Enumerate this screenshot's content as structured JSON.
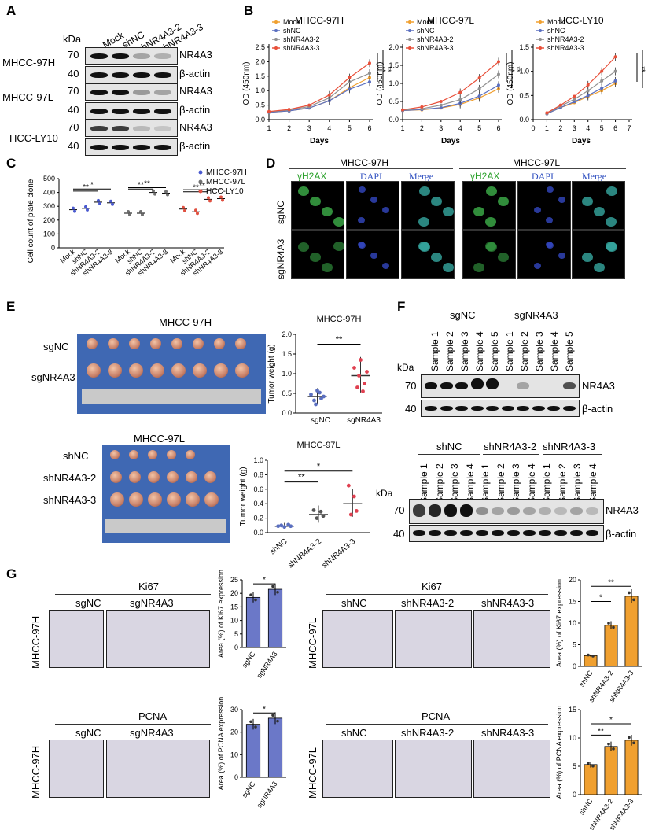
{
  "panels": {
    "A": "A",
    "B": "B",
    "C": "C",
    "D": "D",
    "E": "E",
    "F": "F",
    "G": "G"
  },
  "panelA": {
    "kda": "kDa",
    "lanes": [
      "Mock",
      "shNC",
      "shNR4A3-2",
      "shNR4A3-3"
    ],
    "cell_lines": [
      "MHCC-97H",
      "MHCC-97L",
      "HCC-LY10"
    ],
    "mw": [
      "70",
      "40"
    ],
    "proteins": [
      "NR4A3",
      "β-actin"
    ]
  },
  "panelB": {
    "legend": [
      "Mock",
      "shNC",
      "shNR4A3-2",
      "shNR4A3-3"
    ],
    "sig": "**",
    "colors": {
      "Mock": "#f0a030",
      "shNC": "#5a6fc0",
      "shNR4A3-2": "#909090",
      "shNR4A3-3": "#e8503a"
    }
  },
  "panelC": {
    "legend": [
      "MHCC-97H",
      "MHCC-97L",
      "HCC-LY10"
    ],
    "sig1": "*",
    "sig2": "**"
  },
  "panelD": {
    "groups": [
      "MHCC-97H",
      "MHCC-97L"
    ],
    "channels": [
      "γH2AX",
      "DAPI",
      "Merge"
    ],
    "rows": [
      "sgNC",
      "sgNR4A3"
    ]
  },
  "panelE": {
    "title1": "MHCC-97H",
    "rows1": [
      "sgNC",
      "sgNR4A3"
    ],
    "title2": "MHCC-97L",
    "rows2": [
      "shNC",
      "shNR4A3-2",
      "shNR4A3-3"
    ],
    "sig": "**",
    "sig_star": "*"
  },
  "panelF": {
    "kda": "kDa",
    "groups1": [
      "sgNC",
      "sgNR4A3"
    ],
    "groups2": [
      "shNC",
      "shNR4A3-2",
      "shNR4A3-3"
    ],
    "samples5": [
      "Sample 1",
      "Sample 2",
      "Sample 3",
      "Sample 4",
      "Sample 5"
    ],
    "samples4": [
      "Sample 1",
      "Sample 2",
      "Sample 3",
      "Sample 4"
    ],
    "mw": [
      "70",
      "40"
    ],
    "proteins": [
      "NR4A3",
      "β-actin"
    ]
  },
  "panelG": {
    "stains": [
      "Ki67",
      "PCNA"
    ],
    "left_groups": [
      "sgNC",
      "sgNR4A3"
    ],
    "right_groups": [
      "shNC",
      "shNR4A3-2",
      "shNR4A3-3"
    ],
    "left_cell": "MHCC-97H",
    "right_cell": "MHCC-97L",
    "sig": "*",
    "sig2": "**"
  },
  "chart_data": [
    {
      "type": "line",
      "panel": "B",
      "title": "MHCC-97H",
      "xlabel": "Days",
      "ylabel": "OD (450nm)",
      "x": [
        1,
        2,
        3,
        4,
        5,
        6
      ],
      "ylim": [
        0,
        2.5
      ],
      "xlim": [
        1,
        6
      ],
      "xticks": [
        1,
        2,
        3,
        4,
        5,
        6
      ],
      "yticks": [
        0.0,
        0.5,
        1.0,
        1.5,
        2.0,
        2.5
      ],
      "series": [
        {
          "name": "Mock",
          "values": [
            0.25,
            0.3,
            0.4,
            0.65,
            1.1,
            1.45
          ]
        },
        {
          "name": "shNC",
          "values": [
            0.25,
            0.3,
            0.4,
            0.65,
            1.05,
            1.3
          ]
        },
        {
          "name": "shNR4A3-2",
          "values": [
            0.27,
            0.33,
            0.45,
            0.75,
            1.3,
            1.6
          ]
        },
        {
          "name": "shNR4A3-3",
          "values": [
            0.28,
            0.35,
            0.5,
            0.85,
            1.45,
            1.95
          ]
        }
      ]
    },
    {
      "type": "line",
      "panel": "B",
      "title": "MHCC-97L",
      "xlabel": "Days",
      "ylabel": "OD (450nm)",
      "x": [
        1,
        2,
        3,
        4,
        5,
        6
      ],
      "ylim": [
        0,
        2.0
      ],
      "xlim": [
        1,
        6
      ],
      "xticks": [
        1,
        2,
        3,
        4,
        5,
        6
      ],
      "yticks": [
        0.0,
        0.5,
        1.0,
        1.5,
        2.0
      ],
      "series": [
        {
          "name": "Mock",
          "values": [
            0.25,
            0.27,
            0.32,
            0.42,
            0.6,
            0.85
          ]
        },
        {
          "name": "shNC",
          "values": [
            0.25,
            0.28,
            0.33,
            0.45,
            0.65,
            0.95
          ]
        },
        {
          "name": "shNR4A3-2",
          "values": [
            0.26,
            0.3,
            0.4,
            0.55,
            0.85,
            1.25
          ]
        },
        {
          "name": "shNR4A3-3",
          "values": [
            0.27,
            0.35,
            0.5,
            0.75,
            1.15,
            1.6
          ]
        }
      ]
    },
    {
      "type": "line",
      "panel": "B",
      "title": "HCC-LY10",
      "xlabel": "Days",
      "ylabel": "OD (450nm)",
      "x": [
        1,
        2,
        3,
        4,
        5,
        6
      ],
      "ylim": [
        0,
        1.5
      ],
      "xlim": [
        0,
        7
      ],
      "xticks": [
        0,
        1,
        2,
        3,
        4,
        5,
        6,
        7
      ],
      "yticks": [
        0.0,
        0.5,
        1.0,
        1.5
      ],
      "series": [
        {
          "name": "Mock",
          "values": [
            0.12,
            0.25,
            0.35,
            0.48,
            0.6,
            0.75
          ]
        },
        {
          "name": "shNC",
          "values": [
            0.12,
            0.25,
            0.37,
            0.5,
            0.65,
            0.8
          ]
        },
        {
          "name": "shNR4A3-2",
          "values": [
            0.13,
            0.28,
            0.42,
            0.6,
            0.8,
            1.0
          ]
        },
        {
          "name": "shNR4A3-3",
          "values": [
            0.14,
            0.3,
            0.48,
            0.72,
            1.0,
            1.3
          ]
        }
      ]
    },
    {
      "type": "scatter",
      "panel": "C",
      "ylabel": "Cell count of plate clone",
      "ylim": [
        0,
        500
      ],
      "yticks": [
        0,
        100,
        200,
        300,
        400,
        500
      ],
      "categories": [
        "Mock",
        "shNC",
        "shNR4A3-2",
        "shNR4A3-3",
        "Mock",
        "shNC",
        "shNR4A3-2",
        "shNR4A3-3",
        "Mock",
        "shNC",
        "shNR4A3-2",
        "shNR4A3-3"
      ],
      "values": [
        275,
        285,
        330,
        325,
        250,
        250,
        400,
        395,
        280,
        260,
        350,
        355
      ]
    },
    {
      "type": "scatter",
      "panel": "E",
      "title": "MHCC-97H",
      "ylabel": "Tumor weight (g)",
      "categories": [
        "sgNC",
        "sgNR4A3"
      ],
      "ylim": [
        0,
        2.0
      ],
      "yticks": [
        0.0,
        0.5,
        1.0,
        1.5,
        2.0
      ],
      "values": [
        0.42,
        0.95
      ]
    },
    {
      "type": "scatter",
      "panel": "E",
      "title": "MHCC-97L",
      "ylabel": "Tumor weight (g)",
      "categories": [
        "shNC",
        "shNR4A3-2",
        "shNR4A3-3"
      ],
      "ylim": [
        0,
        1.0
      ],
      "yticks": [
        0.0,
        0.2,
        0.4,
        0.6,
        0.8,
        1.0
      ],
      "values": [
        0.09,
        0.25,
        0.4
      ]
    },
    {
      "type": "bar",
      "panel": "G",
      "ylabel": "Area (%) of Ki67 expression",
      "categories": [
        "sgNC",
        "sgNR4A3"
      ],
      "values": [
        18.5,
        21.5
      ],
      "ylim": [
        0,
        25
      ],
      "yticks": [
        0,
        5,
        10,
        15,
        20,
        25
      ]
    },
    {
      "type": "bar",
      "panel": "G",
      "ylabel": "Area (%) of Ki67 expression",
      "categories": [
        "shNC",
        "shNR4A3-2",
        "shNR4A3-3"
      ],
      "values": [
        2.5,
        9.5,
        16.2
      ],
      "ylim": [
        0,
        20
      ],
      "yticks": [
        0,
        5,
        10,
        15,
        20
      ]
    },
    {
      "type": "bar",
      "panel": "G",
      "ylabel": "Area (%) of PCNA expression",
      "categories": [
        "sgNC",
        "sgNR4A3"
      ],
      "values": [
        23.5,
        26.2
      ],
      "ylim": [
        0,
        30
      ],
      "yticks": [
        0,
        10,
        20,
        30
      ]
    },
    {
      "type": "bar",
      "panel": "G",
      "ylabel": "Area (%) of PCNA expression",
      "categories": [
        "shNC",
        "shNR4A3-2",
        "shNR4A3-3"
      ],
      "values": [
        5.3,
        8.5,
        9.6
      ],
      "ylim": [
        0,
        15
      ],
      "yticks": [
        0,
        5,
        10,
        15
      ]
    }
  ]
}
